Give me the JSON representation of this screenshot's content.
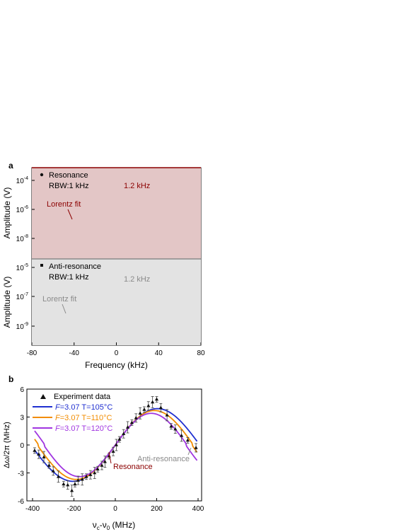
{
  "panel_a": {
    "label": "a",
    "top": {
      "legend_series": "Resonance",
      "rbw": "RBW:1 kHz",
      "fit_label": "Lorentz fit",
      "width_label": "1.2 kHz",
      "ylabel": "Amplitude (V)",
      "yticks": [
        "10-4",
        "10-6",
        "10-8"
      ],
      "colors": {
        "fit": "#8b0000",
        "fill": "#e3c6c6",
        "points": "#111111"
      }
    },
    "bottom": {
      "legend_series": "Anti-resonance",
      "rbw": "RBW:1 kHz",
      "fit_label": "Lorentz fit",
      "width_label": "1.2 kHz",
      "ylabel": "Amplitude (V)",
      "yticks": [
        "10-5",
        "10-7",
        "10-9"
      ],
      "colors": {
        "fit": "#8a8a8a",
        "fill": "#e3e3e3",
        "points": "#111111"
      }
    },
    "xlabel": "Frequency (kHz)",
    "xticks": [
      "-80",
      "-40",
      "0",
      "40",
      "80"
    ]
  },
  "panel_b": {
    "label": "b",
    "ylabel": "Δω/2π (MHz)",
    "xlabel": "νc-ν0 (MHz)",
    "xticks": [
      "-400",
      "-200",
      "0",
      "200",
      "400"
    ],
    "yticks": [
      "6",
      "3",
      "0",
      "-3",
      "-6"
    ],
    "annotation_resonance": "Resonance",
    "annotation_antiresonance": "Anti-resonance",
    "legend": [
      {
        "F": "F",
        "text": "=3.07 T=105°C",
        "color": "#1f2fd0"
      },
      {
        "F": "F",
        "text": "=3.07 T=110°C",
        "color": "#f28c00"
      },
      {
        "F": "F",
        "text": "=3.07 T=120°C",
        "color": "#a035e0"
      }
    ],
    "experiment_label": "Experiment data"
  },
  "chart_data": [
    {
      "type": "scatter",
      "title": "",
      "xlabel": "Frequency (kHz)",
      "ylabel": "Amplitude (V)",
      "xlim": [
        -80,
        80
      ],
      "ylim": [
        1e-09,
        0.0005
      ],
      "yscale": "log",
      "series": [
        {
          "name": "Resonance",
          "kind": "points",
          "note": "noisy data around Lorentzian"
        },
        {
          "name": "Lorentz fit",
          "kind": "line",
          "center": 0,
          "fwhm_khz": 1.2,
          "peak": 0.0002,
          "floor": 2e-08
        }
      ]
    },
    {
      "type": "scatter",
      "title": "",
      "xlabel": "Frequency (kHz)",
      "ylabel": "Amplitude (V)",
      "xlim": [
        -80,
        80
      ],
      "ylim": [
        1e-10,
        3e-05
      ],
      "yscale": "log",
      "series": [
        {
          "name": "Anti-resonance",
          "kind": "points"
        },
        {
          "name": "Lorentz fit",
          "kind": "line",
          "center": 0,
          "fwhm_khz": 1.2,
          "peak": 7e-06,
          "floor": 1.2e-09
        }
      ]
    },
    {
      "type": "line",
      "title": "",
      "xlabel": "νc-ν0 (MHz)",
      "ylabel": "Δω/2π (MHz)",
      "xlim": [
        -420,
        420
      ],
      "ylim": [
        -6,
        6
      ],
      "series": [
        {
          "name": "Experiment data",
          "kind": "points_with_errorbars",
          "x": [
            -390,
            -370,
            -345,
            -320,
            -300,
            -275,
            -250,
            -230,
            -210,
            -195,
            -180,
            -160,
            -140,
            -120,
            -100,
            -85,
            -65,
            -50,
            -30,
            -10,
            5,
            20,
            40,
            60,
            80,
            100,
            120,
            140,
            160,
            180,
            200,
            220,
            250,
            270,
            290,
            320,
            350,
            390
          ],
          "y": [
            -0.6,
            -1.0,
            -1.3,
            -2.2,
            -2.8,
            -3.4,
            -4.2,
            -4.3,
            -4.9,
            -4.2,
            -3.8,
            -3.7,
            -3.4,
            -3.2,
            -3.0,
            -2.6,
            -2.2,
            -1.8,
            -1.2,
            -0.7,
            0,
            0.6,
            1.2,
            1.9,
            2.4,
            2.9,
            3.4,
            3.8,
            4.2,
            4.6,
            4.9,
            4.0,
            3.2,
            2.0,
            1.7,
            1.0,
            0.5,
            -0.3
          ]
        },
        {
          "name": "F=3.07 T=105°C",
          "kind": "line",
          "peak_x": 200,
          "amplitude": 3.9
        },
        {
          "name": "F=3.07 T=110°C",
          "kind": "line",
          "peak_x": 185,
          "amplitude": 3.7
        },
        {
          "name": "F=3.07 T=120°C",
          "kind": "line",
          "peak_x": 170,
          "amplitude": 3.4
        }
      ]
    }
  ]
}
